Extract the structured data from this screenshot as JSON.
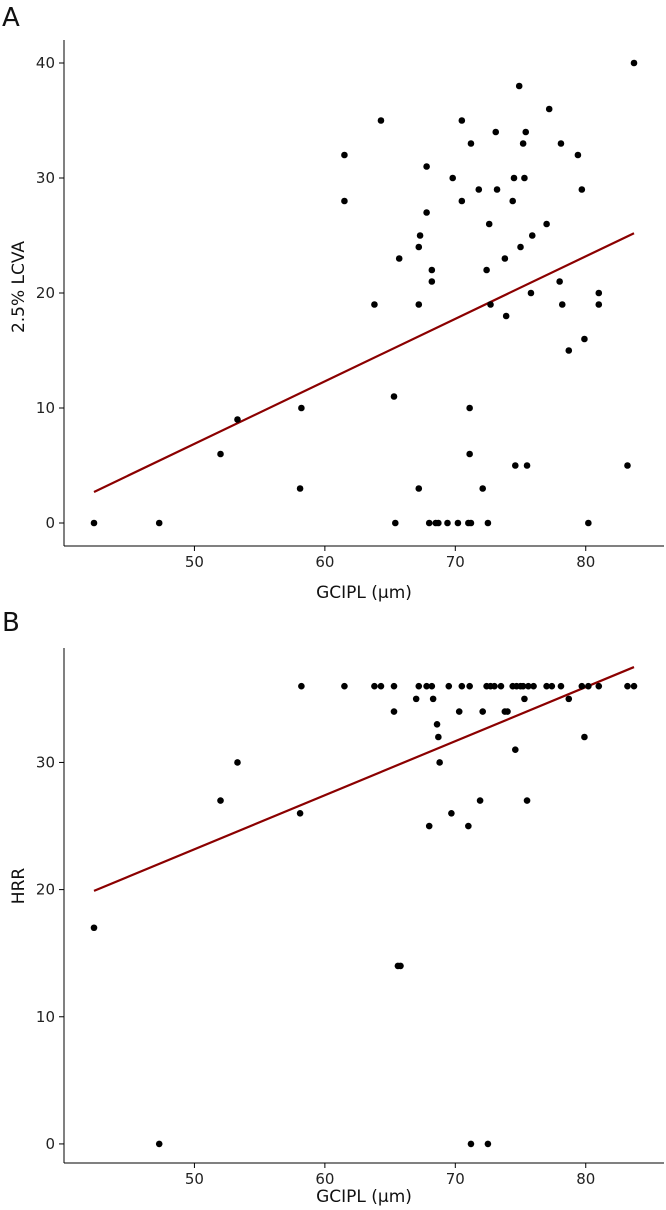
{
  "colors": {
    "points": "#000000",
    "fit_line": "#8b0000",
    "axes": "#000000"
  },
  "chart_data": [
    {
      "type": "scatter",
      "panel_label": "A",
      "title": "",
      "xlabel": "GCIPL (μm)",
      "ylabel": "2.5% LCVA",
      "xlim": [
        40,
        86
      ],
      "ylim": [
        -2,
        42
      ],
      "xticks": [
        50,
        60,
        70,
        80
      ],
      "yticks": [
        0,
        10,
        20,
        30,
        40
      ],
      "xtick_labels": [
        "50",
        "60",
        "70",
        "80"
      ],
      "ytick_labels": [
        "0",
        "10",
        "20",
        "30",
        "40"
      ],
      "grid": false,
      "points": [
        [
          42.3,
          0
        ],
        [
          47.3,
          0
        ],
        [
          52.0,
          6
        ],
        [
          53.3,
          9
        ],
        [
          58.1,
          3
        ],
        [
          58.2,
          10
        ],
        [
          61.5,
          32
        ],
        [
          61.5,
          28
        ],
        [
          63.8,
          19
        ],
        [
          64.3,
          35
        ],
        [
          65.3,
          11
        ],
        [
          65.4,
          0
        ],
        [
          65.7,
          23
        ],
        [
          67.2,
          3
        ],
        [
          67.2,
          19
        ],
        [
          67.2,
          24
        ],
        [
          67.3,
          25
        ],
        [
          67.8,
          31
        ],
        [
          67.8,
          27
        ],
        [
          68.0,
          0
        ],
        [
          68.2,
          22
        ],
        [
          68.2,
          21
        ],
        [
          68.5,
          0
        ],
        [
          68.7,
          0
        ],
        [
          69.4,
          0
        ],
        [
          69.8,
          30
        ],
        [
          70.2,
          0
        ],
        [
          70.5,
          35
        ],
        [
          70.5,
          28
        ],
        [
          71.0,
          0
        ],
        [
          71.1,
          10
        ],
        [
          71.1,
          6
        ],
        [
          71.2,
          33
        ],
        [
          71.2,
          0
        ],
        [
          71.8,
          29
        ],
        [
          72.1,
          3
        ],
        [
          72.4,
          22
        ],
        [
          72.5,
          0
        ],
        [
          72.6,
          26
        ],
        [
          72.7,
          19
        ],
        [
          73.1,
          34
        ],
        [
          73.2,
          29
        ],
        [
          73.8,
          23
        ],
        [
          73.9,
          18
        ],
        [
          74.4,
          28
        ],
        [
          74.5,
          30
        ],
        [
          74.6,
          5
        ],
        [
          74.9,
          38
        ],
        [
          75.0,
          24
        ],
        [
          75.2,
          33
        ],
        [
          75.3,
          30
        ],
        [
          75.4,
          34
        ],
        [
          75.5,
          5
        ],
        [
          75.8,
          20
        ],
        [
          75.9,
          25
        ],
        [
          77.0,
          26
        ],
        [
          77.2,
          36
        ],
        [
          78.0,
          21
        ],
        [
          78.1,
          33
        ],
        [
          78.2,
          19
        ],
        [
          78.7,
          15
        ],
        [
          79.4,
          32
        ],
        [
          79.7,
          29
        ],
        [
          79.9,
          16
        ],
        [
          80.2,
          0
        ],
        [
          81.0,
          20
        ],
        [
          81.0,
          19
        ],
        [
          83.2,
          5
        ],
        [
          83.7,
          40
        ]
      ],
      "fit_line": {
        "x": [
          42.3,
          83.7
        ],
        "y": [
          2.7,
          25.2
        ]
      }
    },
    {
      "type": "scatter",
      "panel_label": "B",
      "title": "",
      "xlabel": "GCIPL (μm)",
      "ylabel": "HRR",
      "xlim": [
        40,
        86
      ],
      "ylim": [
        -1.5,
        39
      ],
      "xticks": [
        50,
        60,
        70,
        80
      ],
      "yticks": [
        0,
        10,
        20,
        30
      ],
      "xtick_labels": [
        "50",
        "60",
        "70",
        "80"
      ],
      "ytick_labels": [
        "0",
        "10",
        "20",
        "30"
      ],
      "grid": false,
      "points": [
        [
          42.3,
          17
        ],
        [
          47.3,
          0
        ],
        [
          52.0,
          27
        ],
        [
          53.3,
          30
        ],
        [
          58.1,
          26
        ],
        [
          58.2,
          36
        ],
        [
          61.5,
          36
        ],
        [
          63.8,
          36
        ],
        [
          64.3,
          36
        ],
        [
          65.3,
          36
        ],
        [
          65.3,
          34
        ],
        [
          65.6,
          14
        ],
        [
          65.8,
          14
        ],
        [
          67.0,
          35
        ],
        [
          67.2,
          36
        ],
        [
          67.8,
          36
        ],
        [
          68.0,
          25
        ],
        [
          68.2,
          36
        ],
        [
          68.3,
          35
        ],
        [
          68.6,
          33
        ],
        [
          68.7,
          32
        ],
        [
          68.8,
          30
        ],
        [
          69.5,
          36
        ],
        [
          69.7,
          26
        ],
        [
          70.3,
          34
        ],
        [
          70.5,
          36
        ],
        [
          71.0,
          25
        ],
        [
          71.1,
          36
        ],
        [
          71.2,
          0
        ],
        [
          71.9,
          27
        ],
        [
          72.1,
          34
        ],
        [
          72.4,
          36
        ],
        [
          72.5,
          0
        ],
        [
          72.7,
          36
        ],
        [
          73.0,
          36
        ],
        [
          73.5,
          36
        ],
        [
          73.8,
          34
        ],
        [
          74.0,
          34
        ],
        [
          74.4,
          36
        ],
        [
          74.6,
          31
        ],
        [
          74.7,
          36
        ],
        [
          75.0,
          36
        ],
        [
          75.2,
          36
        ],
        [
          75.3,
          35
        ],
        [
          75.5,
          27
        ],
        [
          75.6,
          36
        ],
        [
          76.0,
          36
        ],
        [
          77.0,
          36
        ],
        [
          77.4,
          36
        ],
        [
          78.1,
          36
        ],
        [
          78.7,
          35
        ],
        [
          79.7,
          36
        ],
        [
          79.9,
          32
        ],
        [
          80.2,
          36
        ],
        [
          81.0,
          36
        ],
        [
          83.2,
          36
        ],
        [
          83.7,
          36
        ]
      ],
      "fit_line": {
        "x": [
          42.3,
          83.7
        ],
        "y": [
          19.9,
          37.5
        ]
      }
    }
  ]
}
